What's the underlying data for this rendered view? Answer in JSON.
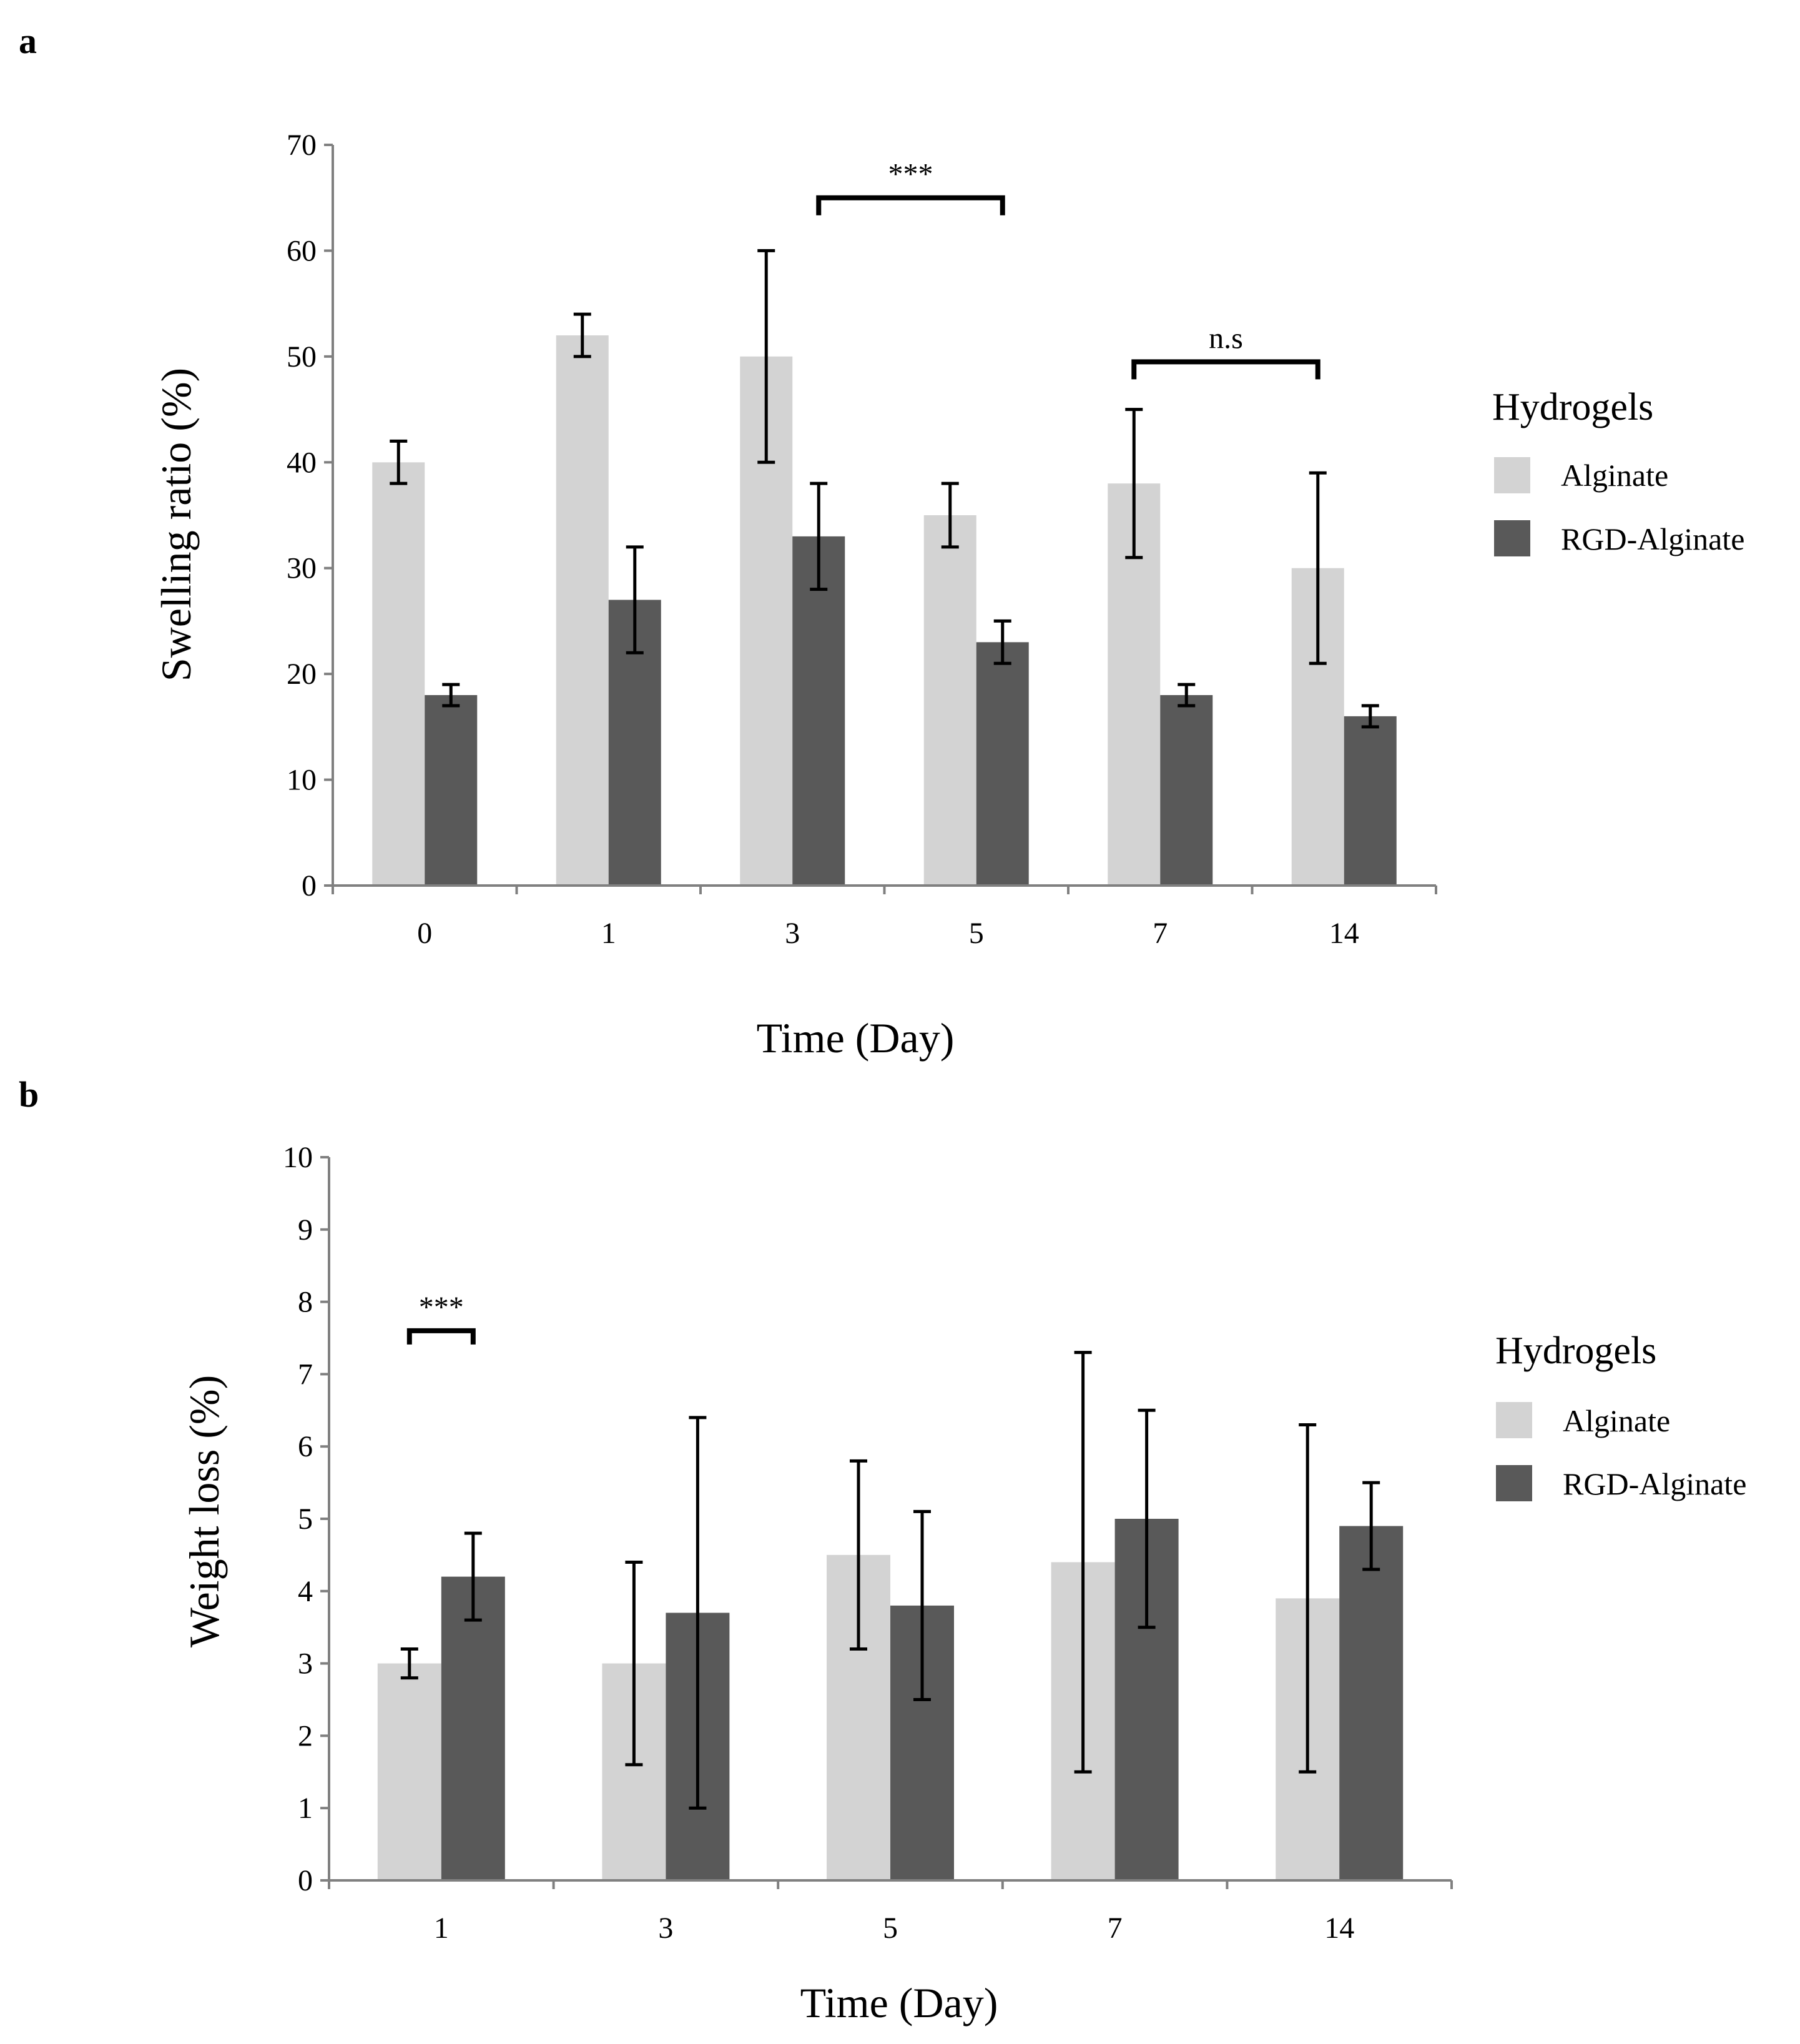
{
  "chart_data": [
    {
      "type": "bar",
      "panel": "a",
      "xlabel": "Time (Day)",
      "ylabel": "Swelling ratio (%)",
      "ylim": [
        0,
        70
      ],
      "yticks": [
        0,
        10,
        20,
        30,
        40,
        50,
        60,
        70
      ],
      "grid": false,
      "categories": [
        "0",
        "1",
        "3",
        "5",
        "7",
        "14"
      ],
      "series": [
        {
          "name": "Alginate",
          "color": "#d3d3d3",
          "values": [
            40,
            52,
            50,
            35,
            38,
            30
          ],
          "errors": [
            2,
            2,
            10,
            3,
            7,
            9
          ]
        },
        {
          "name": "RGD-Alginate",
          "color": "#595959",
          "values": [
            18,
            27,
            33,
            23,
            18,
            16
          ],
          "errors": [
            1,
            5,
            5,
            2,
            1,
            1
          ]
        }
      ],
      "legend": {
        "title": "Hydrogels",
        "position": "right"
      },
      "annotations": [
        {
          "text": "***",
          "from": {
            "category": "3",
            "series": "RGD-Alginate"
          },
          "to": {
            "category": "5",
            "series": "RGD-Alginate"
          },
          "level": 65
        },
        {
          "text": "n.s",
          "from": {
            "category": "7",
            "series": "Alginate"
          },
          "to": {
            "category": "14",
            "series": "Alginate"
          },
          "level": 49.5
        }
      ]
    },
    {
      "type": "bar",
      "panel": "b",
      "xlabel": "Time (Day)",
      "ylabel": "Weight loss (%)",
      "ylim": [
        0,
        10
      ],
      "yticks": [
        0,
        1,
        2,
        3,
        4,
        5,
        6,
        7,
        8,
        9,
        10
      ],
      "grid": false,
      "categories": [
        "1",
        "3",
        "5",
        "7",
        "14"
      ],
      "series": [
        {
          "name": "Alginate",
          "color": "#d3d3d3",
          "values": [
            3.0,
            3.0,
            4.5,
            4.4,
            3.9
          ],
          "errors": [
            0.2,
            1.4,
            1.3,
            2.9,
            2.4
          ]
        },
        {
          "name": "RGD-Alginate",
          "color": "#595959",
          "values": [
            4.2,
            3.7,
            3.8,
            5.0,
            4.9
          ],
          "errors": [
            0.6,
            2.7,
            1.3,
            1.5,
            0.6
          ]
        }
      ],
      "legend": {
        "title": "Hydrogels",
        "position": "right"
      },
      "annotations": [
        {
          "text": "***",
          "from": {
            "category": "1",
            "series": "Alginate"
          },
          "to": {
            "category": "1",
            "series": "RGD-Alginate"
          },
          "level": 7.6
        }
      ]
    }
  ]
}
